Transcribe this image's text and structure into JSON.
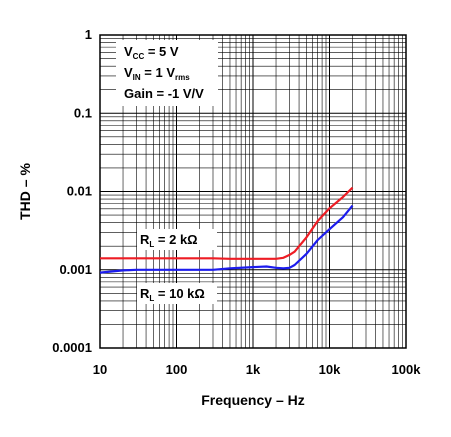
{
  "chart_data": {
    "type": "line",
    "x_scale": "log",
    "y_scale": "log",
    "xlim": [
      10,
      100000
    ],
    "ylim": [
      0.0001,
      1
    ],
    "grid": true,
    "xlabel": "Frequency – Hz",
    "ylabel": "THD – %",
    "x_ticks": [
      {
        "value": 10,
        "label": "10"
      },
      {
        "value": 100,
        "label": "100"
      },
      {
        "value": 1000,
        "label": "1k"
      },
      {
        "value": 10000,
        "label": "10k"
      },
      {
        "value": 100000,
        "label": "100k"
      }
    ],
    "y_ticks": [
      {
        "value": 1,
        "label": "1"
      },
      {
        "value": 0.1,
        "label": "0.1"
      },
      {
        "value": 0.01,
        "label": "0.01"
      },
      {
        "value": 0.001,
        "label": "0.001"
      },
      {
        "value": 0.0001,
        "label": "0.0001"
      }
    ],
    "conditions": [
      {
        "base": "V",
        "sub": "CC",
        "rest": " = 5 V",
        "sub2": ""
      },
      {
        "base": "V",
        "sub": "IN",
        "rest": " = 1 V",
        "sub2": "rms"
      },
      {
        "base": "Gain = -1 V/V",
        "sub": "",
        "rest": "",
        "sub2": ""
      }
    ],
    "series": [
      {
        "base": "R",
        "sub": "L",
        "rest": " = 2 kΩ",
        "color": "#ee1c24",
        "points": [
          [
            10,
            0.0014
          ],
          [
            20,
            0.0014
          ],
          [
            50,
            0.0014
          ],
          [
            100,
            0.0014
          ],
          [
            300,
            0.0014
          ],
          [
            500,
            0.00138
          ],
          [
            1000,
            0.00138
          ],
          [
            2000,
            0.00138
          ],
          [
            2500,
            0.00142
          ],
          [
            3000,
            0.00155
          ],
          [
            3500,
            0.0017
          ],
          [
            5000,
            0.0026
          ],
          [
            7000,
            0.0042
          ],
          [
            10000,
            0.0061
          ],
          [
            15000,
            0.0085
          ],
          [
            20000,
            0.0112
          ]
        ]
      },
      {
        "base": "R",
        "sub": "L",
        "rest": " = 10 kΩ",
        "color": "#1c1cee",
        "points": [
          [
            10,
            0.00092
          ],
          [
            20,
            0.00098
          ],
          [
            30,
            0.001
          ],
          [
            100,
            0.001
          ],
          [
            300,
            0.001
          ],
          [
            500,
            0.00104
          ],
          [
            1000,
            0.00108
          ],
          [
            1500,
            0.0011
          ],
          [
            2000,
            0.00106
          ],
          [
            2500,
            0.00104
          ],
          [
            3000,
            0.00106
          ],
          [
            3500,
            0.00115
          ],
          [
            5000,
            0.0016
          ],
          [
            7000,
            0.0024
          ],
          [
            10000,
            0.0033
          ],
          [
            15000,
            0.0047
          ],
          [
            20000,
            0.0066
          ]
        ]
      }
    ]
  }
}
